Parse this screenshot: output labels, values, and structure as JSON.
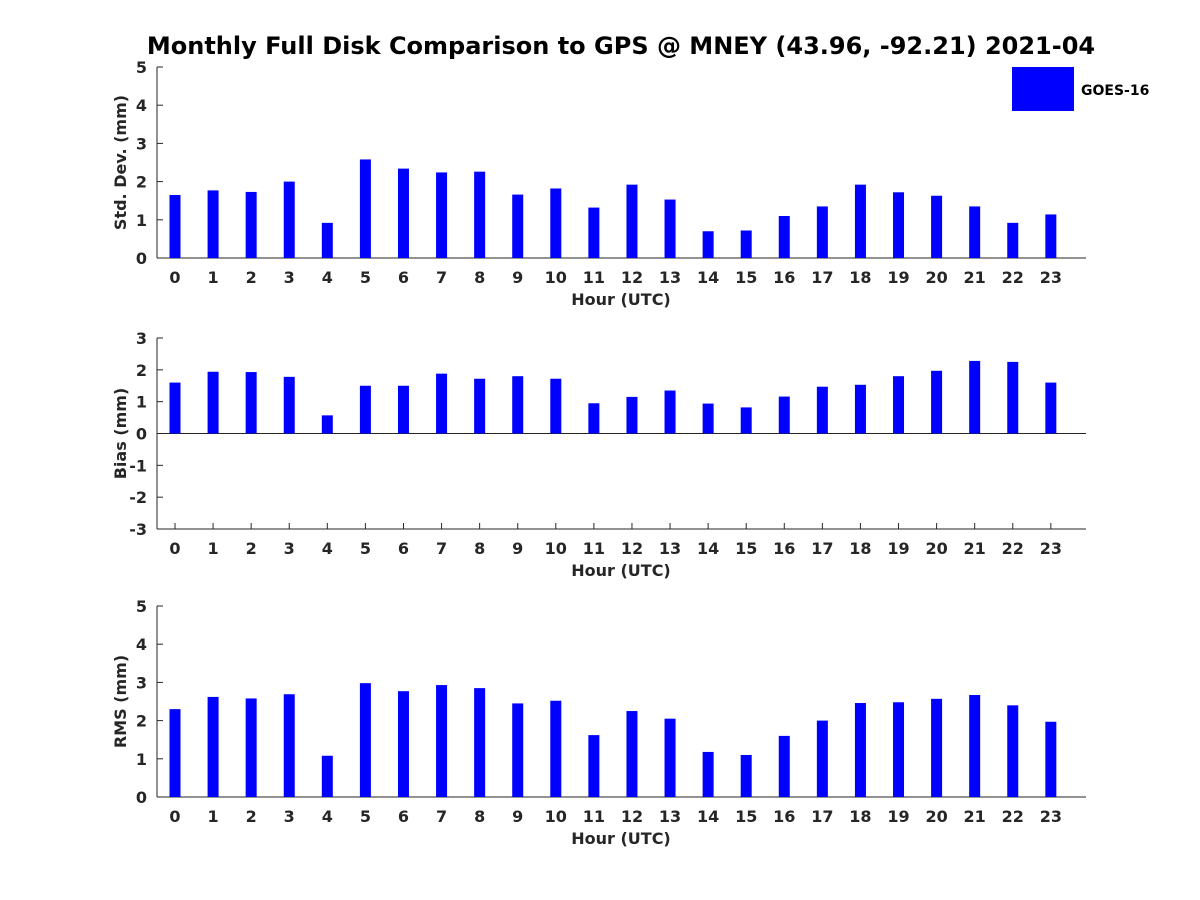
{
  "title": "Monthly Full Disk Comparison to GPS @ MNEY (43.96, -92.21) 2021-04",
  "legend": {
    "label": "GOES-16",
    "color": "#0000ff",
    "placement": "top-right"
  },
  "chart_data": [
    {
      "type": "bar",
      "ylabel": "Std. Dev. (mm)",
      "xlabel": "Hour (UTC)",
      "categories": [
        "0",
        "1",
        "2",
        "3",
        "4",
        "5",
        "6",
        "7",
        "8",
        "9",
        "10",
        "11",
        "12",
        "13",
        "14",
        "15",
        "16",
        "17",
        "18",
        "19",
        "20",
        "21",
        "22",
        "23"
      ],
      "series": [
        {
          "name": "GOES-16",
          "color": "#0000ff",
          "values": [
            1.65,
            1.77,
            1.73,
            2.0,
            0.92,
            2.58,
            2.34,
            2.24,
            2.26,
            1.66,
            1.82,
            1.32,
            1.92,
            1.53,
            0.7,
            0.72,
            1.1,
            1.35,
            1.92,
            1.72,
            1.63,
            1.35,
            0.92,
            1.14
          ]
        }
      ],
      "ylim": [
        0,
        5
      ],
      "yticks": [
        "0",
        "1",
        "2",
        "3",
        "4",
        "5"
      ],
      "grid": false
    },
    {
      "type": "bar",
      "ylabel": "Bias (mm)",
      "xlabel": "Hour (UTC)",
      "categories": [
        "0",
        "1",
        "2",
        "3",
        "4",
        "5",
        "6",
        "7",
        "8",
        "9",
        "10",
        "11",
        "12",
        "13",
        "14",
        "15",
        "16",
        "17",
        "18",
        "19",
        "20",
        "21",
        "22",
        "23"
      ],
      "series": [
        {
          "name": "GOES-16",
          "color": "#0000ff",
          "values": [
            1.6,
            1.94,
            1.93,
            1.78,
            0.57,
            1.5,
            1.5,
            1.88,
            1.72,
            1.8,
            1.72,
            0.95,
            1.15,
            1.35,
            0.94,
            0.82,
            1.16,
            1.47,
            1.53,
            1.8,
            1.97,
            2.28,
            2.25,
            1.6
          ]
        }
      ],
      "ylim": [
        -3,
        3
      ],
      "yticks": [
        "-3",
        "-2",
        "-1",
        "0",
        "1",
        "2",
        "3"
      ],
      "grid": false
    },
    {
      "type": "bar",
      "ylabel": "RMS (mm)",
      "xlabel": "Hour (UTC)",
      "categories": [
        "0",
        "1",
        "2",
        "3",
        "4",
        "5",
        "6",
        "7",
        "8",
        "9",
        "10",
        "11",
        "12",
        "13",
        "14",
        "15",
        "16",
        "17",
        "18",
        "19",
        "20",
        "21",
        "22",
        "23"
      ],
      "series": [
        {
          "name": "GOES-16",
          "color": "#0000ff",
          "values": [
            2.3,
            2.62,
            2.58,
            2.69,
            1.08,
            2.98,
            2.77,
            2.93,
            2.85,
            2.45,
            2.52,
            1.62,
            2.25,
            2.05,
            1.18,
            1.1,
            1.6,
            2.0,
            2.46,
            2.48,
            2.57,
            2.67,
            2.4,
            1.97
          ]
        }
      ],
      "ylim": [
        0,
        5
      ],
      "yticks": [
        "0",
        "1",
        "2",
        "3",
        "4",
        "5"
      ],
      "grid": false
    }
  ]
}
